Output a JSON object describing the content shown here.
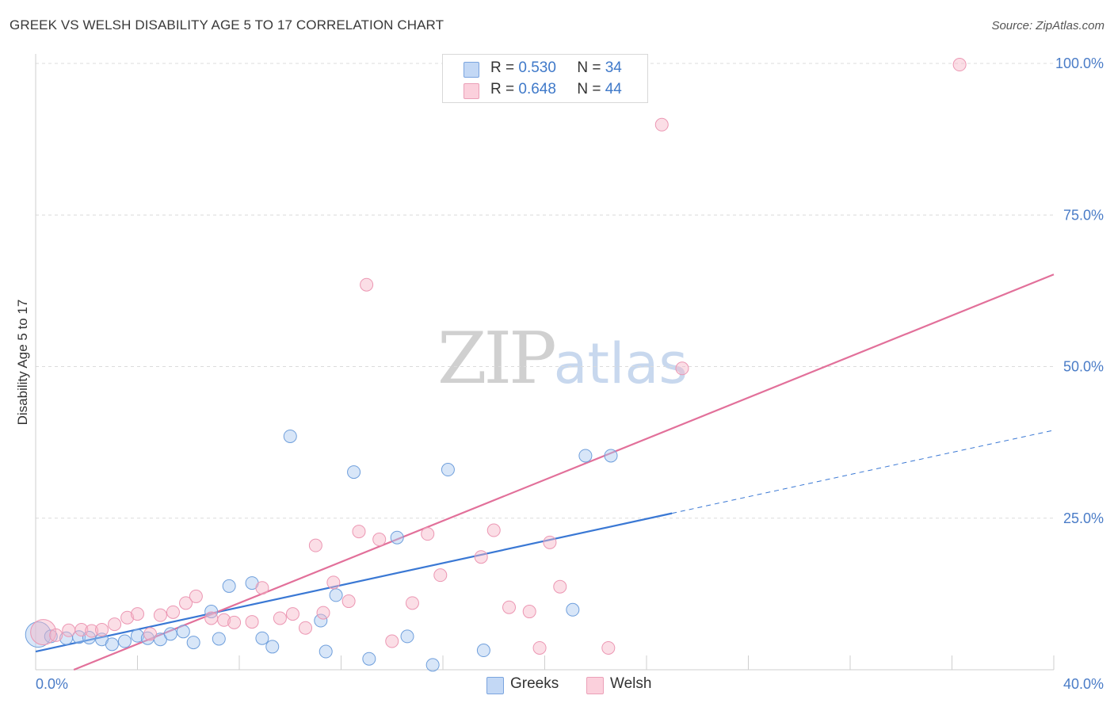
{
  "header": {
    "title": "GREEK VS WELSH DISABILITY AGE 5 TO 17 CORRELATION CHART",
    "source": "Source: ZipAtlas.com"
  },
  "stats": {
    "greeks": {
      "r_label": "R =",
      "r_value": "0.530",
      "n_label": "N =",
      "n_value": "34",
      "color": "#a9c8f0"
    },
    "welsh": {
      "r_label": "R =",
      "r_value": "0.648",
      "n_label": "N =",
      "n_value": "44",
      "color": "#f6b6c8"
    }
  },
  "legend": {
    "greeks_label": "Greeks",
    "welsh_label": "Welsh"
  },
  "watermark": {
    "zip": "ZIP",
    "atlas": "atlas"
  },
  "chart_data": {
    "type": "scatter",
    "title": "GREEK VS WELSH DISABILITY AGE 5 TO 17 CORRELATION CHART",
    "xlabel": "",
    "ylabel": "Disability Age 5 to 17",
    "xlim": [
      0,
      40
    ],
    "ylim": [
      0,
      100
    ],
    "x_tick_labels": [
      "0.0%",
      "40.0%"
    ],
    "y_tick_values": [
      25,
      50,
      75,
      100
    ],
    "y_tick_labels": [
      "25.0%",
      "50.0%",
      "75.0%",
      "100.0%"
    ],
    "grid": true,
    "legend_position": "bottom-center",
    "colors": {
      "greeks": "#3a78d4",
      "welsh": "#e2709a"
    },
    "series": [
      {
        "name": "Greeks",
        "color": "#3a78d4",
        "points": [
          [
            0.1,
            5.8
          ],
          [
            0.6,
            5.5
          ],
          [
            1.2,
            5.2
          ],
          [
            1.7,
            5.4
          ],
          [
            2.1,
            5.3
          ],
          [
            2.6,
            5.0
          ],
          [
            3.0,
            4.2
          ],
          [
            3.5,
            4.7
          ],
          [
            4.0,
            5.6
          ],
          [
            4.4,
            5.2
          ],
          [
            4.9,
            5.0
          ],
          [
            5.3,
            5.9
          ],
          [
            5.8,
            6.3
          ],
          [
            6.2,
            4.5
          ],
          [
            6.9,
            9.6
          ],
          [
            7.2,
            5.1
          ],
          [
            7.6,
            13.8
          ],
          [
            8.5,
            14.3
          ],
          [
            8.9,
            5.2
          ],
          [
            9.3,
            3.8
          ],
          [
            10.0,
            38.5
          ],
          [
            11.2,
            8.1
          ],
          [
            11.4,
            3.0
          ],
          [
            11.8,
            12.3
          ],
          [
            12.5,
            32.6
          ],
          [
            13.1,
            1.8
          ],
          [
            14.2,
            21.8
          ],
          [
            14.6,
            5.5
          ],
          [
            15.6,
            0.8
          ],
          [
            16.2,
            33.0
          ],
          [
            17.6,
            3.2
          ],
          [
            21.1,
            9.9
          ],
          [
            21.6,
            35.3
          ],
          [
            22.6,
            35.3
          ]
        ]
      },
      {
        "name": "Welsh",
        "color": "#e2709a",
        "points": [
          [
            0.3,
            6.2
          ],
          [
            0.8,
            5.7
          ],
          [
            1.3,
            6.5
          ],
          [
            1.8,
            6.6
          ],
          [
            2.2,
            6.4
          ],
          [
            2.6,
            6.6
          ],
          [
            3.1,
            7.5
          ],
          [
            3.6,
            8.6
          ],
          [
            4.0,
            9.2
          ],
          [
            4.5,
            5.9
          ],
          [
            4.9,
            9.0
          ],
          [
            5.4,
            9.5
          ],
          [
            5.9,
            11.0
          ],
          [
            6.3,
            12.1
          ],
          [
            6.9,
            8.5
          ],
          [
            7.4,
            8.2
          ],
          [
            7.8,
            7.8
          ],
          [
            8.5,
            7.9
          ],
          [
            8.9,
            13.5
          ],
          [
            9.6,
            8.5
          ],
          [
            10.1,
            9.2
          ],
          [
            10.6,
            6.9
          ],
          [
            11.0,
            20.5
          ],
          [
            11.3,
            9.4
          ],
          [
            11.7,
            14.4
          ],
          [
            12.3,
            11.3
          ],
          [
            12.7,
            22.8
          ],
          [
            13.0,
            63.5
          ],
          [
            13.5,
            21.5
          ],
          [
            14.0,
            4.7
          ],
          [
            14.8,
            11.0
          ],
          [
            15.4,
            22.4
          ],
          [
            15.9,
            15.6
          ],
          [
            17.5,
            18.6
          ],
          [
            18.0,
            23.0
          ],
          [
            18.6,
            10.3
          ],
          [
            19.4,
            9.6
          ],
          [
            19.8,
            3.6
          ],
          [
            20.2,
            21.0
          ],
          [
            20.6,
            13.7
          ],
          [
            22.5,
            3.6
          ],
          [
            24.6,
            89.9
          ],
          [
            25.4,
            49.7
          ],
          [
            36.3,
            99.8
          ]
        ]
      }
    ],
    "trendlines": [
      {
        "series": "Greeks",
        "x1": 0,
        "y1": 3.0,
        "x2": 25,
        "y2": 25.8,
        "dashed_to_x": 40,
        "dashed_to_y": 39.5
      },
      {
        "series": "Welsh",
        "x1": 1.5,
        "y1": 0,
        "x2": 40,
        "y2": 65.2
      }
    ]
  }
}
